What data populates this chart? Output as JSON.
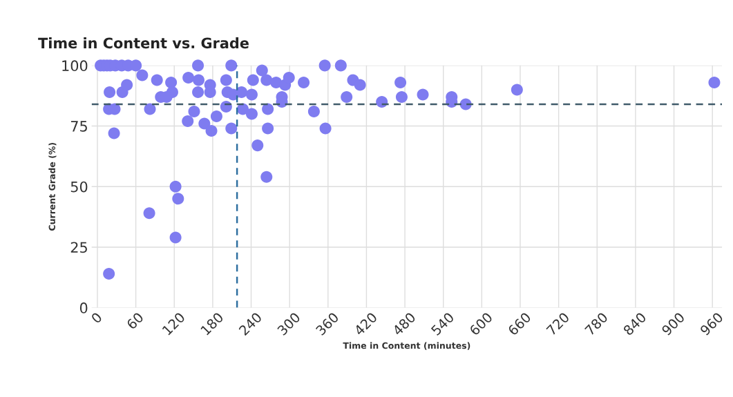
{
  "chart_data": {
    "type": "scatter",
    "title": "Time in Content vs. Grade",
    "xlabel": "Time in Content (minutes)",
    "ylabel": "Current Grade (%)",
    "series": [
      {
        "color": "#7f7cf0",
        "x": [
          5,
          10,
          15,
          20,
          28,
          38,
          48,
          60,
          70,
          19,
          39,
          46,
          18,
          27,
          26,
          93,
          115,
          117,
          99,
          108,
          82,
          122,
          126,
          81,
          122,
          18,
          157,
          209,
          142,
          158,
          157,
          176,
          176,
          201,
          203,
          212,
          201,
          151,
          141,
          167,
          178,
          186,
          209,
          225,
          241,
          243,
          257,
          264,
          279,
          293,
          299,
          322,
          288,
          288,
          227,
          241,
          266,
          266,
          250,
          264,
          338,
          356,
          355,
          380,
          399,
          410,
          389,
          444,
          473,
          475,
          508,
          553,
          553,
          575,
          655,
          963
        ],
        "values": [
          100,
          100,
          100,
          100,
          100,
          100,
          100,
          100,
          96,
          89,
          89,
          92,
          82,
          82,
          72,
          94,
          93,
          89,
          87,
          87,
          82,
          50,
          45,
          39,
          29,
          14,
          100,
          100,
          95,
          94,
          89,
          92,
          89,
          94,
          89,
          88,
          83,
          81,
          77,
          76,
          73,
          79,
          74,
          89,
          88,
          94,
          98,
          94,
          93,
          92,
          95,
          93,
          87,
          85,
          82,
          80,
          82,
          74,
          67,
          54,
          81,
          74,
          100,
          100,
          94,
          92,
          87,
          85,
          93,
          87,
          88,
          87,
          85,
          84,
          90,
          93
        ]
      }
    ],
    "xlim": [
      -9,
      975
    ],
    "ylim": [
      0,
      100
    ],
    "xticks": [
      0,
      60,
      120,
      180,
      240,
      300,
      360,
      420,
      480,
      540,
      600,
      660,
      720,
      780,
      840,
      900,
      960
    ],
    "yticks": [
      0,
      25,
      50,
      75,
      100
    ],
    "grid": true,
    "marker": "circle",
    "ref_lines": [
      {
        "axis": "y",
        "value": 84,
        "color": "#3f5a6a",
        "line_style": "dashed"
      },
      {
        "axis": "x",
        "value": 218,
        "color": "#2e6fa0",
        "line_style": "dashed"
      }
    ]
  }
}
